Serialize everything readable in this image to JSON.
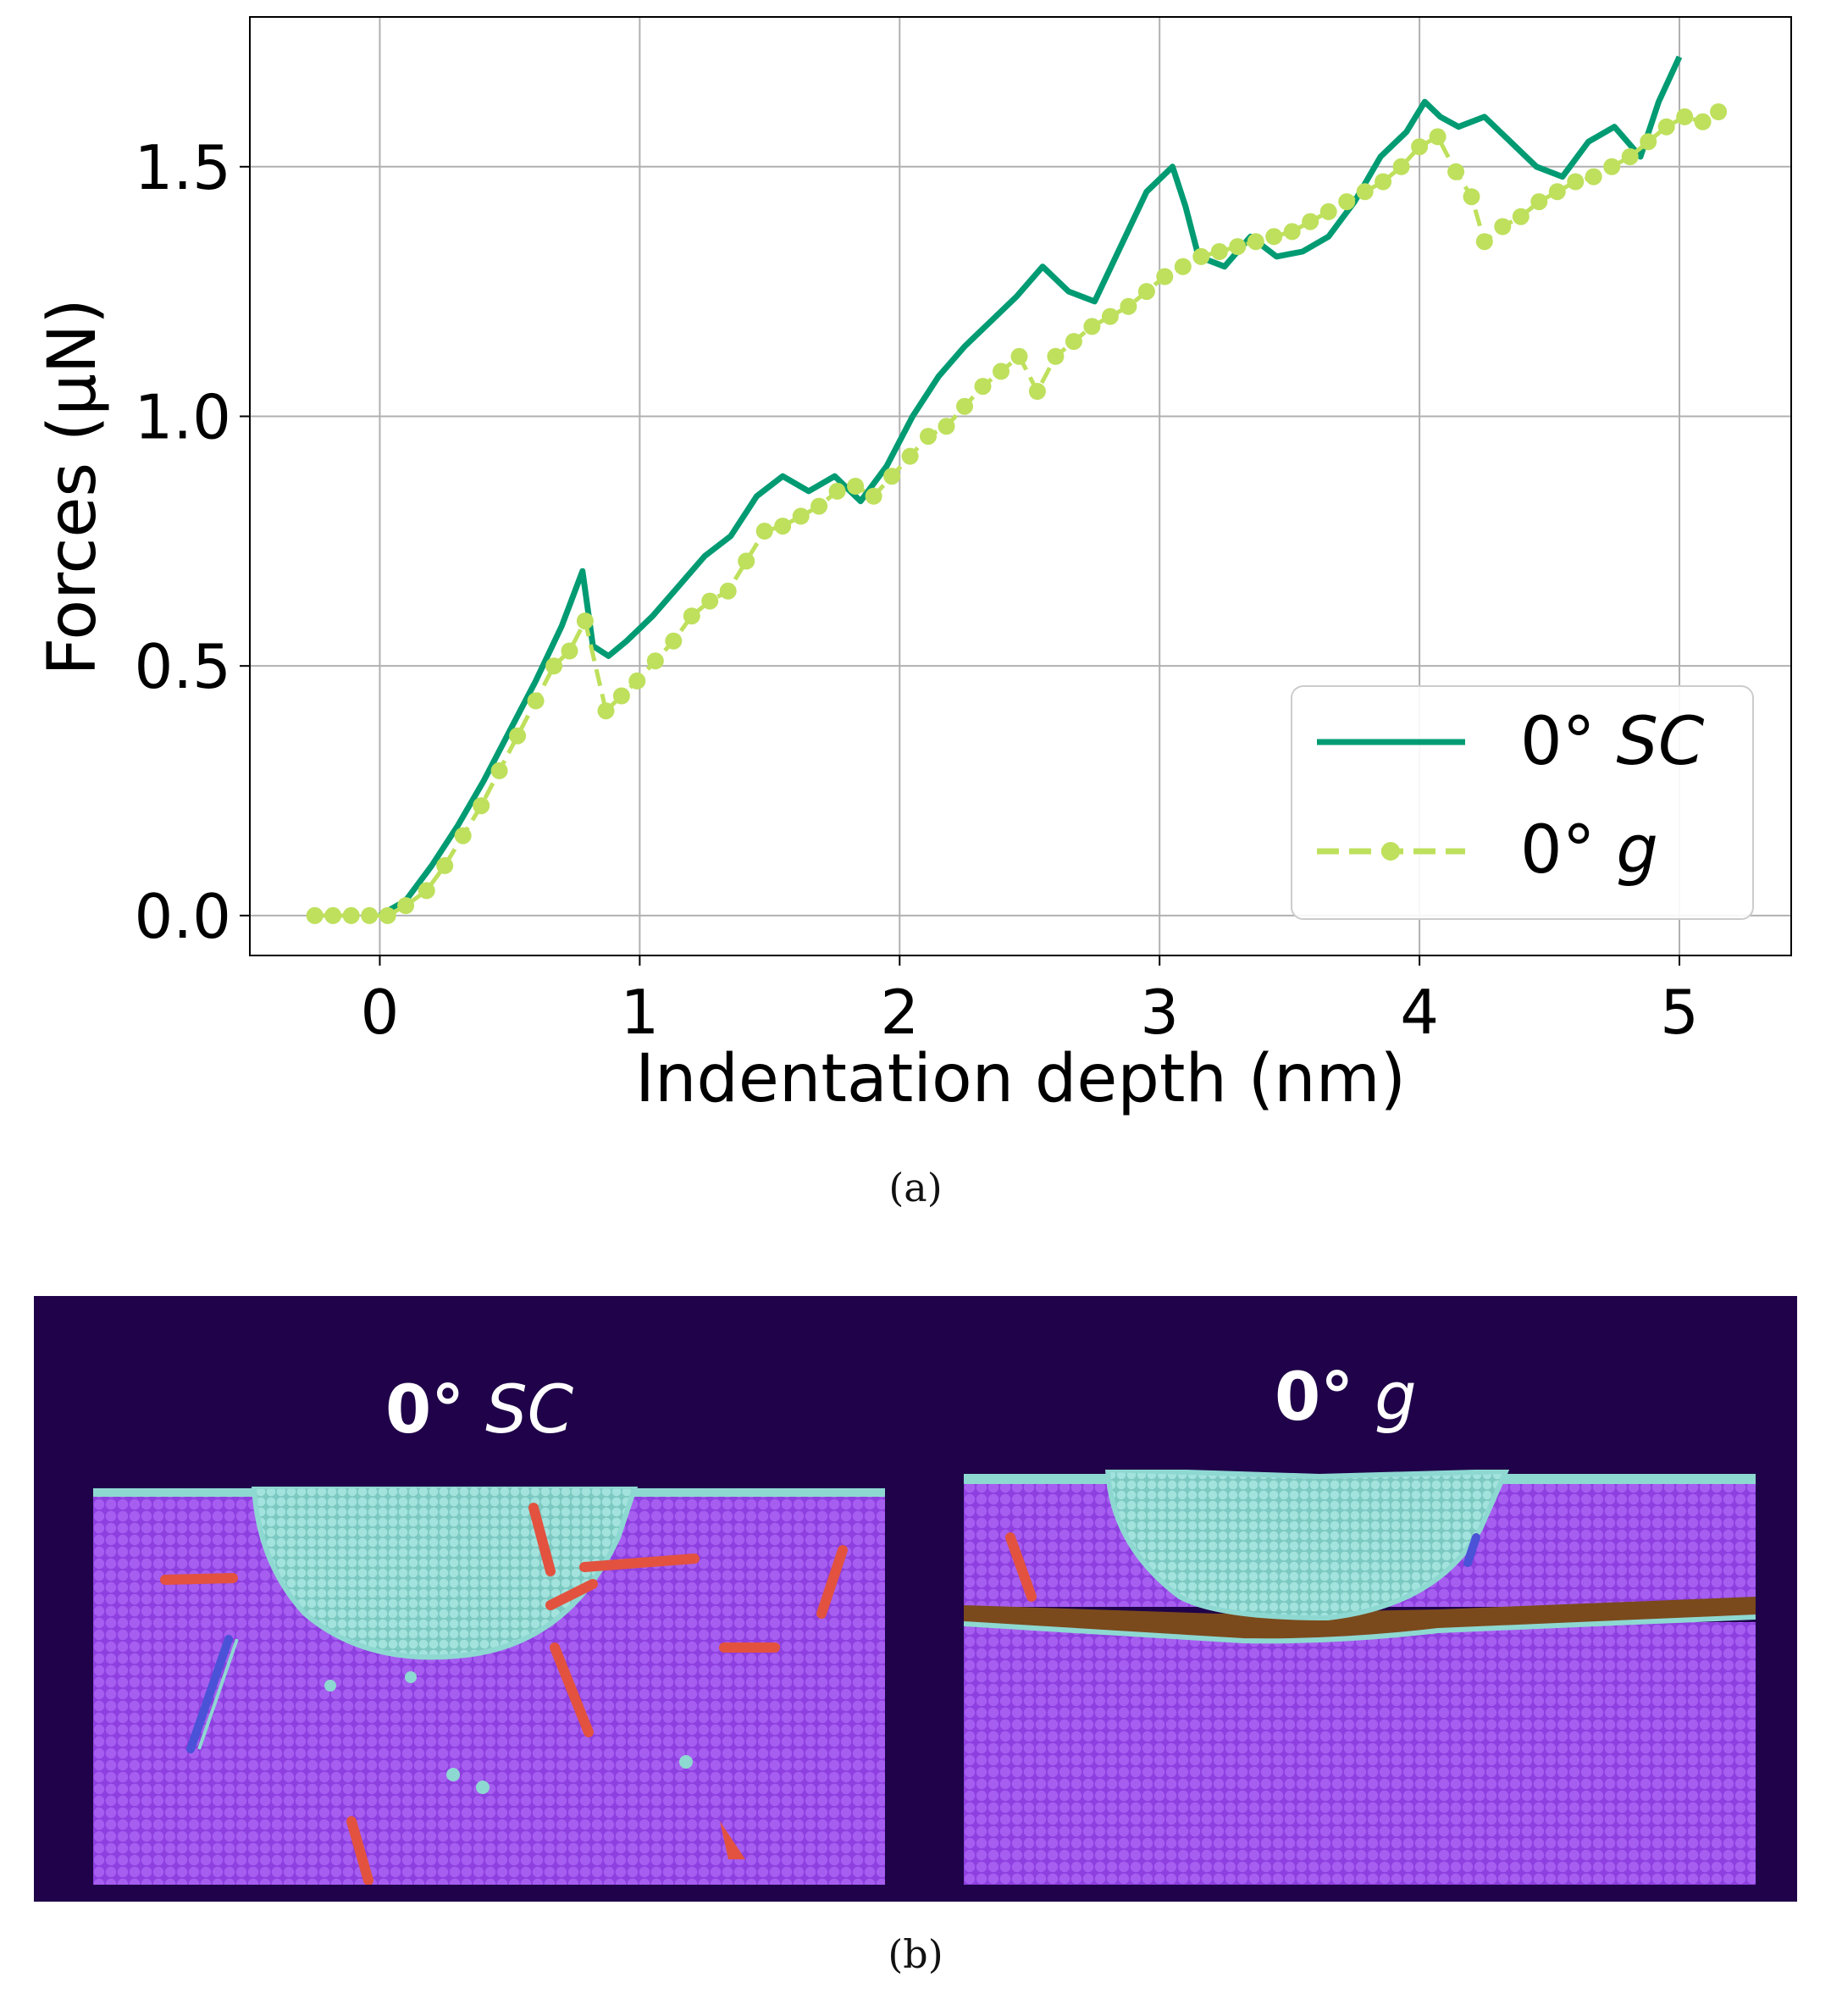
{
  "chart_data": {
    "type": "line",
    "xlabel": "Indentation depth (nm)",
    "ylabel": "Forces (μN)",
    "xlim": [
      -0.5,
      5.43
    ],
    "ylim": [
      -0.08,
      1.8
    ],
    "xticks": [
      0,
      1,
      2,
      3,
      4,
      5
    ],
    "yticks": [
      0.0,
      0.5,
      1.0,
      1.5
    ],
    "ytick_labels": [
      "0.0",
      "0.5",
      "1.0",
      "1.5"
    ],
    "grid": true,
    "legend_position": "lower-right",
    "series": [
      {
        "name_prefix": "0° ",
        "name_italic": "SC",
        "color": "#009b72",
        "style": "solid",
        "x": [
          0.0,
          0.1,
          0.2,
          0.3,
          0.4,
          0.5,
          0.6,
          0.7,
          0.78,
          0.82,
          0.88,
          0.95,
          1.05,
          1.15,
          1.25,
          1.35,
          1.45,
          1.55,
          1.65,
          1.75,
          1.85,
          1.95,
          2.05,
          2.15,
          2.25,
          2.35,
          2.45,
          2.55,
          2.65,
          2.75,
          2.85,
          2.95,
          3.05,
          3.1,
          3.15,
          3.25,
          3.35,
          3.45,
          3.55,
          3.65,
          3.75,
          3.85,
          3.95,
          4.02,
          4.08,
          4.15,
          4.25,
          4.35,
          4.45,
          4.55,
          4.65,
          4.75,
          4.85,
          4.92,
          5.0
        ],
        "y": [
          0.0,
          0.03,
          0.1,
          0.18,
          0.27,
          0.37,
          0.47,
          0.58,
          0.69,
          0.54,
          0.52,
          0.55,
          0.6,
          0.66,
          0.72,
          0.76,
          0.84,
          0.88,
          0.85,
          0.88,
          0.83,
          0.9,
          1.0,
          1.08,
          1.14,
          1.19,
          1.24,
          1.3,
          1.25,
          1.23,
          1.34,
          1.45,
          1.5,
          1.42,
          1.32,
          1.3,
          1.36,
          1.32,
          1.33,
          1.36,
          1.43,
          1.52,
          1.57,
          1.63,
          1.6,
          1.58,
          1.6,
          1.55,
          1.5,
          1.48,
          1.55,
          1.58,
          1.52,
          1.63,
          1.72
        ]
      },
      {
        "name_prefix": "0° ",
        "name_italic": "g",
        "color": "#bee05c",
        "style": "dashed",
        "x": [
          -0.25,
          -0.18,
          -0.11,
          -0.04,
          0.03,
          0.1,
          0.18,
          0.25,
          0.32,
          0.39,
          0.46,
          0.53,
          0.6,
          0.67,
          0.73,
          0.79,
          0.87,
          0.93,
          0.99,
          1.06,
          1.13,
          1.2,
          1.27,
          1.34,
          1.41,
          1.48,
          1.55,
          1.62,
          1.69,
          1.76,
          1.83,
          1.9,
          1.97,
          2.04,
          2.11,
          2.18,
          2.25,
          2.32,
          2.39,
          2.46,
          2.53,
          2.6,
          2.67,
          2.74,
          2.81,
          2.88,
          2.95,
          3.02,
          3.09,
          3.16,
          3.23,
          3.3,
          3.37,
          3.44,
          3.51,
          3.58,
          3.65,
          3.72,
          3.79,
          3.86,
          3.93,
          4.0,
          4.07,
          4.14,
          4.2,
          4.25,
          4.32,
          4.39,
          4.46,
          4.53,
          4.6,
          4.67,
          4.74,
          4.81,
          4.88,
          4.95,
          5.02,
          5.09,
          5.15
        ],
        "y": [
          0.0,
          0.0,
          0.0,
          0.0,
          0.0,
          0.02,
          0.05,
          0.1,
          0.16,
          0.22,
          0.29,
          0.36,
          0.43,
          0.5,
          0.53,
          0.59,
          0.41,
          0.44,
          0.47,
          0.51,
          0.55,
          0.6,
          0.63,
          0.65,
          0.71,
          0.77,
          0.78,
          0.8,
          0.82,
          0.85,
          0.86,
          0.84,
          0.88,
          0.92,
          0.96,
          0.98,
          1.02,
          1.06,
          1.09,
          1.12,
          1.05,
          1.12,
          1.15,
          1.18,
          1.2,
          1.22,
          1.25,
          1.28,
          1.3,
          1.32,
          1.33,
          1.34,
          1.35,
          1.36,
          1.37,
          1.39,
          1.41,
          1.43,
          1.45,
          1.47,
          1.5,
          1.54,
          1.56,
          1.49,
          1.44,
          1.35,
          1.38,
          1.4,
          1.43,
          1.45,
          1.47,
          1.48,
          1.5,
          1.52,
          1.55,
          1.58,
          1.6,
          1.59,
          1.61
        ]
      }
    ]
  },
  "captions": {
    "a": "(a)",
    "b": "(b)"
  },
  "simulations": {
    "left_title_bold": "0°",
    "left_title_italic": "SC",
    "right_title_bold": "0°",
    "right_title_italic": "g",
    "colors": {
      "background": "#1f0249",
      "matrix": "#9a4ae8",
      "indent_zone": "#8ed8d2",
      "defect_red": "#e2523f",
      "defect_blue": "#4a52d8",
      "interface": "#7a4a1c"
    }
  }
}
